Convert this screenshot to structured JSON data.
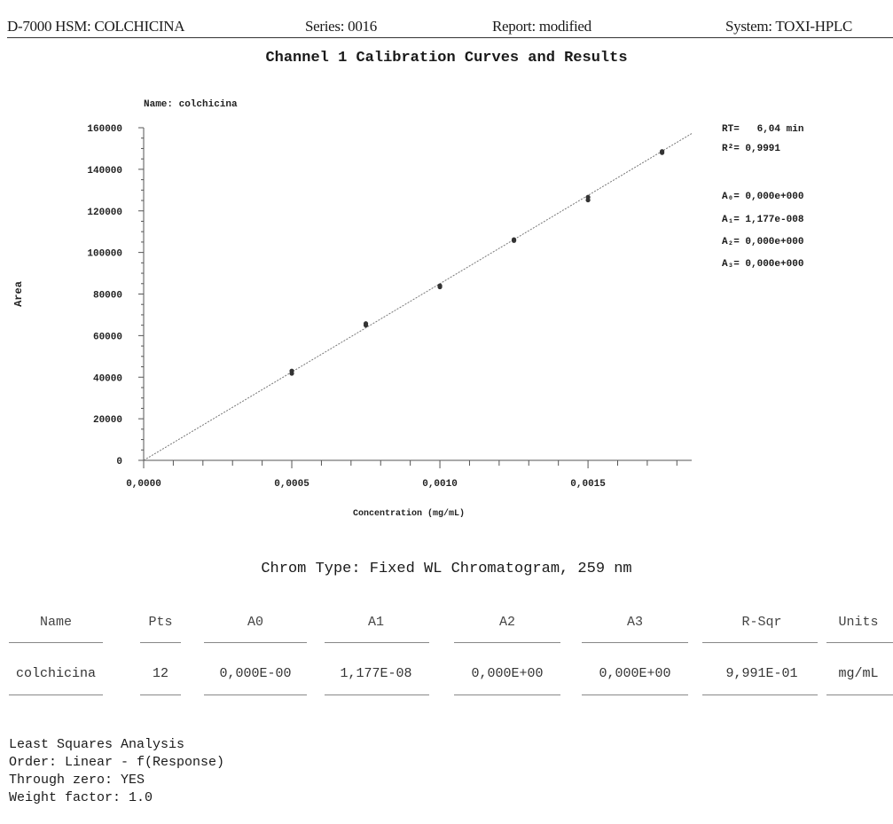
{
  "header": {
    "instrument": "D-7000 HSM: COLCHICINA",
    "series": "Series: 0016",
    "report": "Report: modified",
    "system": "System: TOXI-HPLC"
  },
  "report_title": "Channel 1 Calibration Curves and Results",
  "chart_data": {
    "type": "scatter",
    "title": "Name: colchicina",
    "xlabel": "Concentration (mg/mL)",
    "ylabel": "Area",
    "xlim": [
      0,
      0.00185
    ],
    "ylim": [
      0,
      160000
    ],
    "x_ticks": [
      "0,0000",
      "0,0005",
      "0,0010",
      "0,0015"
    ],
    "y_ticks": [
      "0",
      "20000",
      "40000",
      "60000",
      "80000",
      "100000",
      "120000",
      "140000",
      "160000"
    ],
    "series": [
      {
        "points": [
          {
            "x": 0.0005,
            "y": 41800
          },
          {
            "x": 0.0005,
            "y": 43000
          },
          {
            "x": 0.00075,
            "y": 65000
          },
          {
            "x": 0.00075,
            "y": 65800
          },
          {
            "x": 0.001,
            "y": 83400
          },
          {
            "x": 0.001,
            "y": 84000
          },
          {
            "x": 0.00125,
            "y": 105700
          },
          {
            "x": 0.00125,
            "y": 106200
          },
          {
            "x": 0.0015,
            "y": 125200
          },
          {
            "x": 0.0015,
            "y": 126600
          },
          {
            "x": 0.00175,
            "y": 148000
          },
          {
            "x": 0.00175,
            "y": 148600
          }
        ]
      }
    ],
    "fit_line": {
      "x0": 0,
      "y0": 0,
      "x1": 0.00185,
      "y1": 157200
    },
    "grid": false
  },
  "fit_stats": {
    "rt": "RT=   6,04 min",
    "r2": "R²= 0,9991",
    "a0": "A₀= 0,000e+000",
    "a1": "A₁= 1,177e-008",
    "a2": "A₂= 0,000e+000",
    "a3": "A₃= 0,000e+000"
  },
  "chrom_type": "Chrom Type: Fixed WL Chromatogram, 259 nm",
  "results_table": {
    "headers": [
      "Name",
      "Pts",
      "A0",
      "A1",
      "A2",
      "A3",
      "R-Sqr",
      "Units"
    ],
    "row": [
      "colchicina",
      "12",
      "0,000E-00",
      "1,177E-08",
      "0,000E+00",
      "0,000E+00",
      "9,991E-01",
      "mg/mL"
    ]
  },
  "least_squares": {
    "heading": "Least Squares Analysis",
    "order": "Order: Linear - f(Response)",
    "through_zero": "Through zero: YES",
    "weight": "Weight factor: 1.0"
  }
}
